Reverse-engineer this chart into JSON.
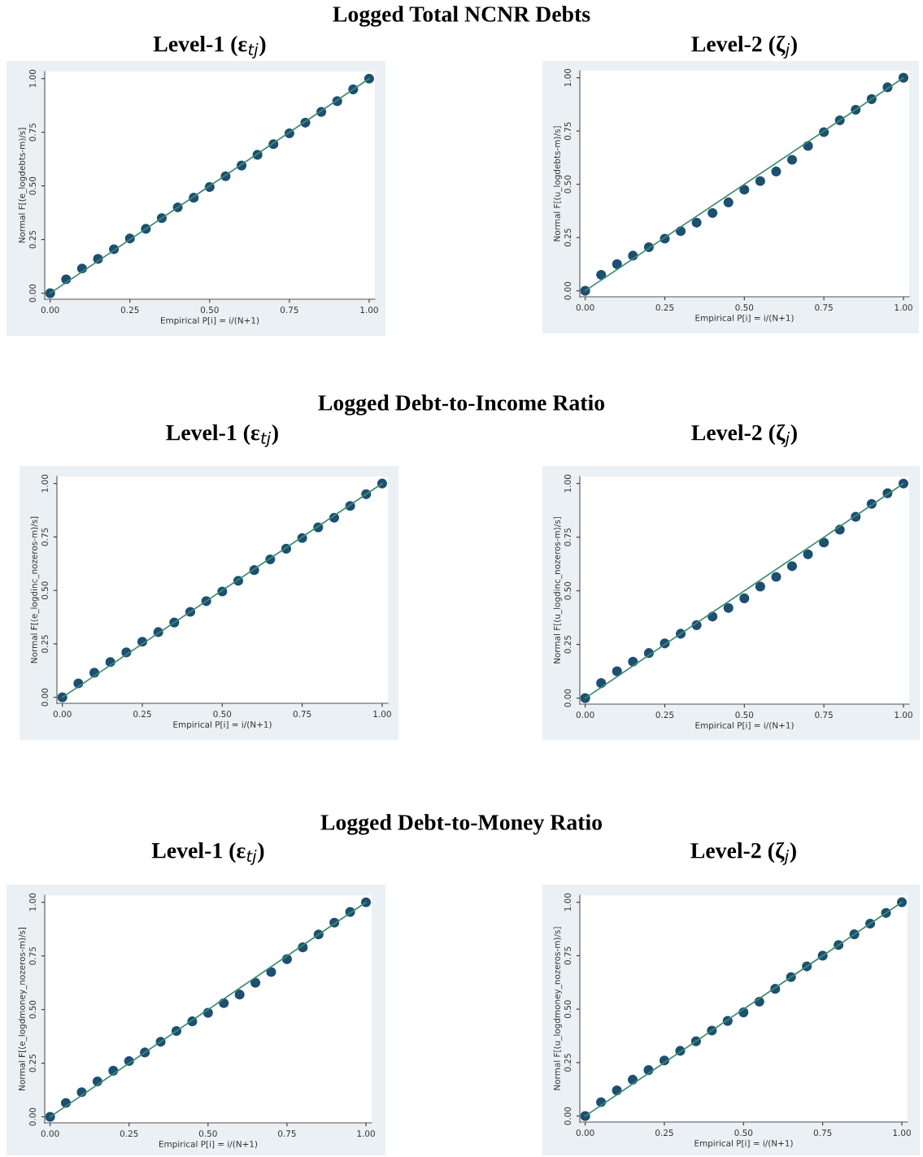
{
  "chart_data": [
    {
      "type": "scatter",
      "subtitle": "Logged Total NCNR Debts",
      "title": "Level-1 (ε$_{tj}$)",
      "xlabel": "Empirical P[i] = i/(N+1)",
      "ylabel": "Normal F[(e_logdebts-m)/s]",
      "xlim": [
        -0.017,
        1.018
      ],
      "ylim": [
        -0.028,
        1.033
      ],
      "xticks": [
        {
          "value": 0,
          "label": "0.00"
        },
        {
          "value": 0.25,
          "label": "0.25"
        },
        {
          "value": 0.5,
          "label": "0.50"
        },
        {
          "value": 0.75,
          "label": "0.75"
        },
        {
          "value": 1,
          "label": "1.00"
        }
      ],
      "yticks": [
        {
          "value": 0,
          "label": "0.00"
        },
        {
          "value": 0.25,
          "label": "0.25"
        },
        {
          "value": 0.5,
          "label": "0.50"
        },
        {
          "value": 0.75,
          "label": "0.75"
        },
        {
          "value": 1,
          "label": "1.00"
        }
      ],
      "series": [
        {
          "marker": "circle",
          "color": "#1d4f72",
          "x": [
            0,
            0.05,
            0.1,
            0.15,
            0.2,
            0.25,
            0.3,
            0.35,
            0.4,
            0.45,
            0.5,
            0.55,
            0.6,
            0.65,
            0.7,
            0.75,
            0.8,
            0.85,
            0.9,
            0.95,
            1
          ],
          "values": [
            0,
            0.065,
            0.115,
            0.16,
            0.205,
            0.255,
            0.3,
            0.35,
            0.4,
            0.445,
            0.495,
            0.545,
            0.595,
            0.645,
            0.695,
            0.745,
            0.795,
            0.845,
            0.895,
            0.95,
            1
          ]
        },
        {
          "type": "line",
          "color": "#3b8c6e",
          "x": [
            0,
            1
          ],
          "values": [
            0,
            1
          ]
        }
      ]
    },
    {
      "type": "scatter",
      "title": "Level-2 (ζ$_{j}$)",
      "xlabel": "Empirical P[i] = i/(N+1)",
      "ylabel": "Normal F[(u_logdebts-m)/s]",
      "xlim": [
        -0.017,
        1.018
      ],
      "ylim": [
        -0.028,
        1.033
      ],
      "xticks": [
        {
          "value": 0,
          "label": "0.00"
        },
        {
          "value": 0.25,
          "label": "0.25"
        },
        {
          "value": 0.5,
          "label": "0.50"
        },
        {
          "value": 0.75,
          "label": "0.75"
        },
        {
          "value": 1,
          "label": "1.00"
        }
      ],
      "yticks": [
        {
          "value": 0,
          "label": "0.00"
        },
        {
          "value": 0.25,
          "label": "0.25"
        },
        {
          "value": 0.5,
          "label": "0.50"
        },
        {
          "value": 0.75,
          "label": "0.75"
        },
        {
          "value": 1,
          "label": "1.00"
        }
      ],
      "series": [
        {
          "marker": "circle",
          "color": "#1d4f72",
          "x": [
            0,
            0.05,
            0.1,
            0.15,
            0.2,
            0.25,
            0.3,
            0.35,
            0.4,
            0.45,
            0.5,
            0.55,
            0.6,
            0.65,
            0.7,
            0.75,
            0.8,
            0.85,
            0.9,
            0.95,
            1
          ],
          "values": [
            0,
            0.075,
            0.125,
            0.165,
            0.205,
            0.245,
            0.28,
            0.32,
            0.365,
            0.415,
            0.475,
            0.515,
            0.56,
            0.615,
            0.68,
            0.745,
            0.8,
            0.85,
            0.9,
            0.955,
            1
          ]
        },
        {
          "type": "line",
          "color": "#3b8c6e",
          "x": [
            0,
            1
          ],
          "values": [
            0,
            1
          ]
        }
      ]
    },
    {
      "type": "scatter",
      "subtitle": "Logged Debt-to-Income Ratio",
      "title": "Level-1 (ε$_{tj}$)",
      "xlabel": "Empirical P[i] = i/(N+1)",
      "ylabel": "Normal F[(e_logdinc_nozeros-m)/s]",
      "xlim": [
        -0.017,
        1.018
      ],
      "ylim": [
        -0.028,
        1.033
      ],
      "xticks": [
        {
          "value": 0,
          "label": "0.00"
        },
        {
          "value": 0.25,
          "label": "0.25"
        },
        {
          "value": 0.5,
          "label": "0.50"
        },
        {
          "value": 0.75,
          "label": "0.75"
        },
        {
          "value": 1,
          "label": "1.00"
        }
      ],
      "yticks": [
        {
          "value": 0,
          "label": "0.00"
        },
        {
          "value": 0.25,
          "label": "0.25"
        },
        {
          "value": 0.5,
          "label": "0.50"
        },
        {
          "value": 0.75,
          "label": "0.75"
        },
        {
          "value": 1,
          "label": "1.00"
        }
      ],
      "series": [
        {
          "marker": "circle",
          "color": "#1d4f72",
          "x": [
            0,
            0.05,
            0.1,
            0.15,
            0.2,
            0.25,
            0.3,
            0.35,
            0.4,
            0.45,
            0.5,
            0.55,
            0.6,
            0.65,
            0.7,
            0.75,
            0.8,
            0.85,
            0.9,
            0.95,
            1
          ],
          "values": [
            0,
            0.065,
            0.115,
            0.165,
            0.21,
            0.26,
            0.305,
            0.35,
            0.4,
            0.45,
            0.495,
            0.545,
            0.595,
            0.645,
            0.695,
            0.745,
            0.795,
            0.84,
            0.895,
            0.95,
            1
          ]
        },
        {
          "type": "line",
          "color": "#3b8c6e",
          "x": [
            0,
            1
          ],
          "values": [
            0,
            1
          ]
        }
      ]
    },
    {
      "type": "scatter",
      "title": "Level-2 (ζ$_{j}$)",
      "xlabel": "Empirical P[i] = i/(N+1)",
      "ylabel": "Normal F[(u_logdinc_nozeros-m)/s]",
      "xlim": [
        -0.017,
        1.018
      ],
      "ylim": [
        -0.028,
        1.033
      ],
      "xticks": [
        {
          "value": 0,
          "label": "0.00"
        },
        {
          "value": 0.25,
          "label": "0.25"
        },
        {
          "value": 0.5,
          "label": "0.50"
        },
        {
          "value": 0.75,
          "label": "0.75"
        },
        {
          "value": 1,
          "label": "1.00"
        }
      ],
      "yticks": [
        {
          "value": 0,
          "label": "0.00"
        },
        {
          "value": 0.25,
          "label": "0.25"
        },
        {
          "value": 0.5,
          "label": "0.50"
        },
        {
          "value": 0.75,
          "label": "0.75"
        },
        {
          "value": 1,
          "label": "1.00"
        }
      ],
      "series": [
        {
          "marker": "circle",
          "color": "#1d4f72",
          "x": [
            0,
            0.05,
            0.1,
            0.15,
            0.2,
            0.25,
            0.3,
            0.35,
            0.4,
            0.45,
            0.5,
            0.55,
            0.6,
            0.65,
            0.7,
            0.75,
            0.8,
            0.85,
            0.9,
            0.95,
            1
          ],
          "values": [
            0,
            0.07,
            0.125,
            0.17,
            0.21,
            0.255,
            0.3,
            0.34,
            0.38,
            0.42,
            0.465,
            0.52,
            0.565,
            0.615,
            0.67,
            0.725,
            0.785,
            0.845,
            0.905,
            0.955,
            1
          ]
        },
        {
          "type": "line",
          "color": "#3b8c6e",
          "x": [
            0,
            1
          ],
          "values": [
            0,
            1
          ]
        }
      ]
    },
    {
      "type": "scatter",
      "subtitle": "Logged Debt-to-Money Ratio",
      "title": "Level-1 (ε$_{tj}$)",
      "xlabel": "Empirical P[i] = i/(N+1)",
      "ylabel": "Normal F[(e_logdmoney_nozeros-m)/s]",
      "xlim": [
        -0.017,
        1.018
      ],
      "ylim": [
        -0.028,
        1.033
      ],
      "xticks": [
        {
          "value": 0,
          "label": "0.00"
        },
        {
          "value": 0.25,
          "label": "0.25"
        },
        {
          "value": 0.5,
          "label": "0.50"
        },
        {
          "value": 0.75,
          "label": "0.75"
        },
        {
          "value": 1,
          "label": "1.00"
        }
      ],
      "yticks": [
        {
          "value": 0,
          "label": "0.00"
        },
        {
          "value": 0.25,
          "label": "0.25"
        },
        {
          "value": 0.5,
          "label": "0.50"
        },
        {
          "value": 0.75,
          "label": "0.75"
        },
        {
          "value": 1,
          "label": "1.00"
        }
      ],
      "series": [
        {
          "marker": "circle",
          "color": "#1d4f72",
          "x": [
            0,
            0.05,
            0.1,
            0.15,
            0.2,
            0.25,
            0.3,
            0.35,
            0.4,
            0.45,
            0.5,
            0.55,
            0.6,
            0.65,
            0.7,
            0.75,
            0.8,
            0.85,
            0.9,
            0.95,
            1
          ],
          "values": [
            0,
            0.065,
            0.115,
            0.165,
            0.215,
            0.26,
            0.3,
            0.35,
            0.4,
            0.445,
            0.485,
            0.53,
            0.57,
            0.625,
            0.675,
            0.735,
            0.79,
            0.85,
            0.905,
            0.955,
            1
          ]
        },
        {
          "type": "line",
          "color": "#3b8c6e",
          "x": [
            0,
            1
          ],
          "values": [
            0,
            1
          ]
        }
      ]
    },
    {
      "type": "scatter",
      "title": "Level-2 (ζ$_{j}$)",
      "xlabel": "Empirical P[i] = i/(N+1)",
      "ylabel": "Normal F[(u_logdmoney_nozeros-m)/s]",
      "xlim": [
        -0.017,
        1.018
      ],
      "ylim": [
        -0.028,
        1.033
      ],
      "xticks": [
        {
          "value": 0,
          "label": "0.00"
        },
        {
          "value": 0.25,
          "label": "0.25"
        },
        {
          "value": 0.5,
          "label": "0.50"
        },
        {
          "value": 0.75,
          "label": "0.75"
        },
        {
          "value": 1,
          "label": "1.00"
        }
      ],
      "yticks": [
        {
          "value": 0,
          "label": "0.00"
        },
        {
          "value": 0.25,
          "label": "0.25"
        },
        {
          "value": 0.5,
          "label": "0.50"
        },
        {
          "value": 0.75,
          "label": "0.75"
        },
        {
          "value": 1,
          "label": "1.00"
        }
      ],
      "series": [
        {
          "marker": "circle",
          "color": "#1d4f72",
          "x": [
            0,
            0.05,
            0.1,
            0.15,
            0.2,
            0.25,
            0.3,
            0.35,
            0.4,
            0.45,
            0.5,
            0.55,
            0.6,
            0.65,
            0.7,
            0.75,
            0.8,
            0.85,
            0.9,
            0.95,
            1
          ],
          "values": [
            0,
            0.065,
            0.12,
            0.17,
            0.215,
            0.26,
            0.305,
            0.35,
            0.4,
            0.445,
            0.485,
            0.535,
            0.595,
            0.65,
            0.7,
            0.75,
            0.8,
            0.85,
            0.9,
            0.95,
            1
          ]
        },
        {
          "type": "line",
          "color": "#3b8c6e",
          "x": [
            0,
            1
          ],
          "values": [
            0,
            1
          ]
        }
      ]
    }
  ]
}
